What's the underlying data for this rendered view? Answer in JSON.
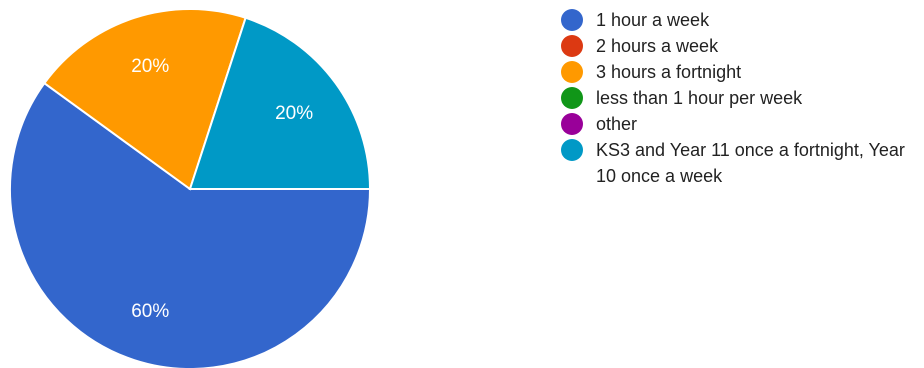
{
  "chart_data": {
    "type": "pie",
    "categories": [
      "1 hour a week",
      "2 hours a week",
      "3 hours a fortnight",
      "less than 1 hour per week",
      "other",
      "KS3 and Year 11 once a fortnight, Year 10 once a week"
    ],
    "values": [
      60,
      0,
      20,
      0,
      0,
      20
    ],
    "slice_labels": [
      "60%",
      "",
      "20%",
      "",
      "",
      "20%"
    ],
    "colors": [
      "#3366cc",
      "#dc3912",
      "#ff9900",
      "#109618",
      "#990099",
      "#0099c6"
    ],
    "legend_position": "right",
    "start": "3 o'clock",
    "direction": "clockwise",
    "title": ""
  }
}
